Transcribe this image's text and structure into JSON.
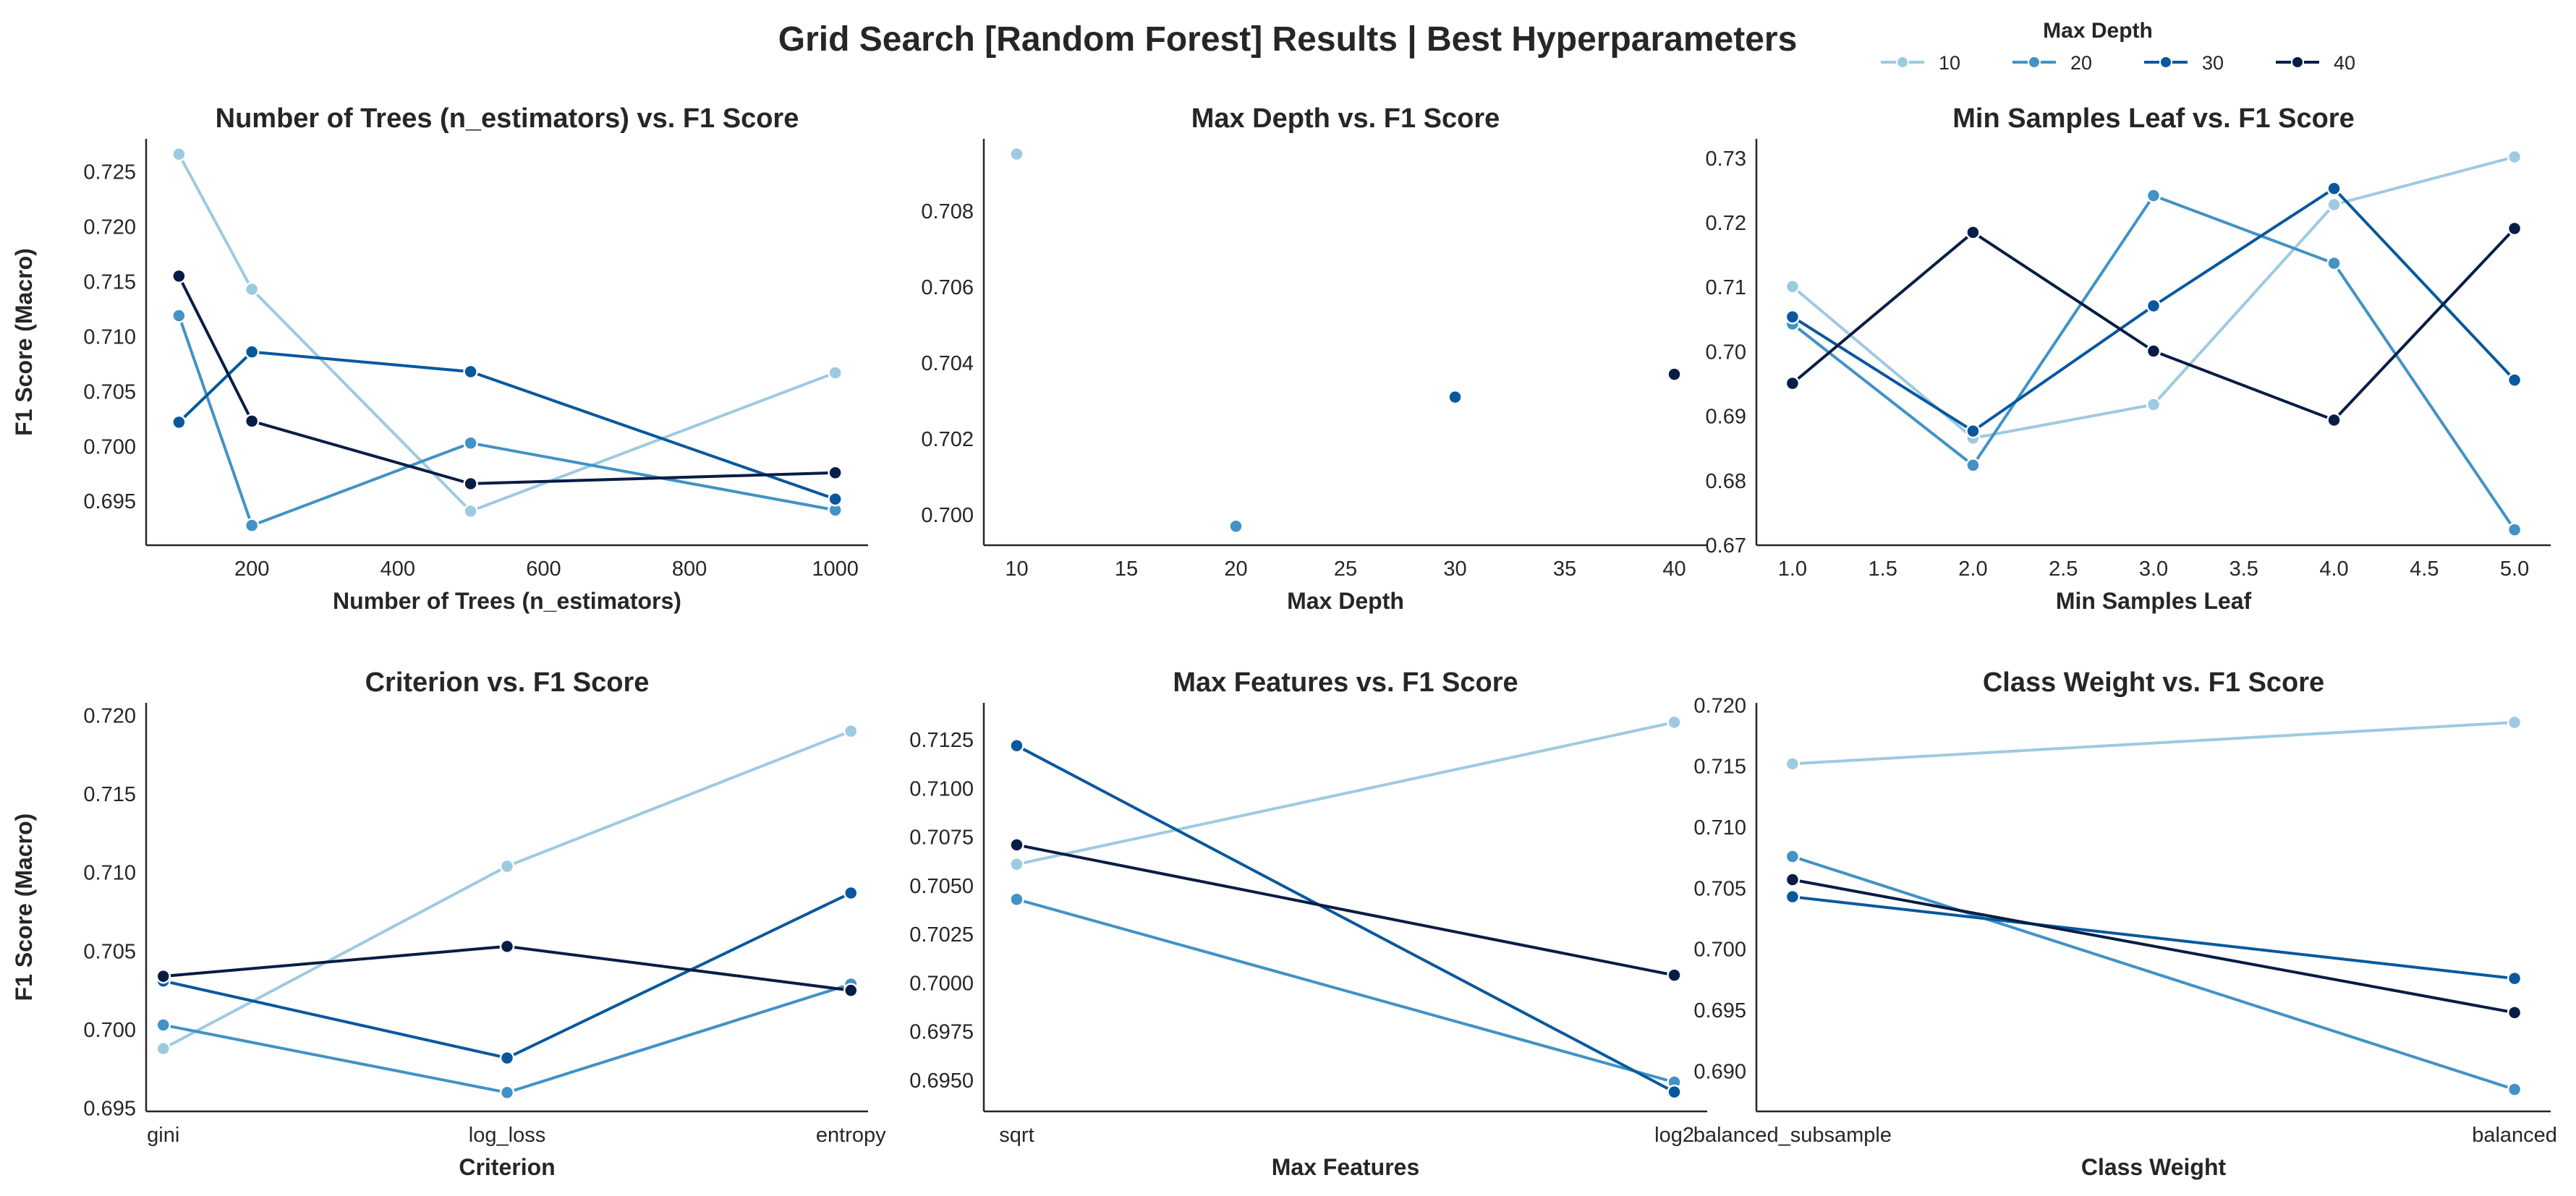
{
  "title": "Grid Search [Random Forest] Results | Best Hyperparameters",
  "legend": {
    "title": "Max Depth",
    "entries": [
      {
        "label": "10",
        "color": "#9ecae1"
      },
      {
        "label": "20",
        "color": "#4292c6"
      },
      {
        "label": "30",
        "color": "#08589e"
      },
      {
        "label": "40",
        "color": "#081d45"
      }
    ]
  },
  "chart_data": [
    {
      "type": "line",
      "title": "Number of Trees (n_estimators) vs. F1 Score",
      "xlabel": "Number of Trees (n_estimators)",
      "ylabel": "F1 Score (Macro)",
      "xscale": "linear",
      "xlim": [
        55,
        1045
      ],
      "ylim": [
        0.691,
        0.728
      ],
      "xticks": [
        200,
        400,
        600,
        800,
        1000
      ],
      "xtick_labels": [
        "200",
        "400",
        "600",
        "800",
        "1000"
      ],
      "yticks": [
        0.695,
        0.7,
        0.705,
        0.71,
        0.715,
        0.72,
        0.725
      ],
      "ytick_labels": [
        "0.695",
        "0.700",
        "0.705",
        "0.710",
        "0.715",
        "0.720",
        "0.725"
      ],
      "series": [
        {
          "name": "10",
          "x": [
            100,
            200,
            500,
            1000
          ],
          "y": [
            0.7266,
            0.7143,
            0.6941,
            0.7067
          ]
        },
        {
          "name": "20",
          "x": [
            100,
            200,
            500,
            1000
          ],
          "y": [
            0.7119,
            0.6928,
            0.7003,
            0.6942
          ]
        },
        {
          "name": "30",
          "x": [
            100,
            200,
            500,
            1000
          ],
          "y": [
            0.7022,
            0.7086,
            0.7068,
            0.6952
          ]
        },
        {
          "name": "40",
          "x": [
            100,
            200,
            500,
            1000
          ],
          "y": [
            0.7155,
            0.7023,
            0.6966,
            0.6976
          ]
        }
      ]
    },
    {
      "type": "scatter",
      "title": "Max Depth vs. F1 Score",
      "xlabel": "Max Depth",
      "ylabel": "",
      "xscale": "linear",
      "xlim": [
        8.5,
        41.5
      ],
      "ylim": [
        0.6992,
        0.7099
      ],
      "xticks": [
        10,
        15,
        20,
        25,
        30,
        35,
        40
      ],
      "xtick_labels": [
        "10",
        "15",
        "20",
        "25",
        "30",
        "35",
        "40"
      ],
      "yticks": [
        0.7,
        0.702,
        0.704,
        0.706,
        0.708
      ],
      "ytick_labels": [
        "0.700",
        "0.702",
        "0.704",
        "0.706",
        "0.708"
      ],
      "series": [
        {
          "name": "10",
          "x": [
            10
          ],
          "y": [
            0.7095
          ]
        },
        {
          "name": "20",
          "x": [
            20
          ],
          "y": [
            0.6997
          ]
        },
        {
          "name": "30",
          "x": [
            30
          ],
          "y": [
            0.7031
          ]
        },
        {
          "name": "40",
          "x": [
            40
          ],
          "y": [
            0.7037
          ]
        }
      ]
    },
    {
      "type": "line",
      "title": "Min Samples Leaf vs. F1 Score",
      "xlabel": "Min Samples Leaf",
      "ylabel": "",
      "xscale": "linear",
      "xlim": [
        0.8,
        5.2
      ],
      "ylim": [
        0.67,
        0.733
      ],
      "xticks": [
        1.0,
        1.5,
        2.0,
        2.5,
        3.0,
        3.5,
        4.0,
        4.5,
        5.0
      ],
      "xtick_labels": [
        "1.0",
        "1.5",
        "2.0",
        "2.5",
        "3.0",
        "3.5",
        "4.0",
        "4.5",
        "5.0"
      ],
      "yticks": [
        0.67,
        0.68,
        0.69,
        0.7,
        0.71,
        0.72,
        0.73
      ],
      "ytick_labels": [
        "0.67",
        "0.68",
        "0.69",
        "0.70",
        "0.71",
        "0.72",
        "0.73"
      ],
      "series": [
        {
          "name": "10",
          "x": [
            1,
            2,
            3,
            4,
            5
          ],
          "y": [
            0.7101,
            0.6866,
            0.6918,
            0.7228,
            0.7302
          ]
        },
        {
          "name": "20",
          "x": [
            1,
            2,
            3,
            4,
            5
          ],
          "y": [
            0.7043,
            0.6824,
            0.7242,
            0.7137,
            0.6724
          ]
        },
        {
          "name": "30",
          "x": [
            1,
            2,
            3,
            4,
            5
          ],
          "y": [
            0.7054,
            0.6877,
            0.7071,
            0.7253,
            0.6956
          ]
        },
        {
          "name": "40",
          "x": [
            1,
            2,
            3,
            4,
            5
          ],
          "y": [
            0.6951,
            0.7185,
            0.7001,
            0.6894,
            0.7191
          ]
        }
      ]
    },
    {
      "type": "line",
      "title": "Criterion vs. F1 Score",
      "xlabel": "Criterion",
      "ylabel": "F1 Score (Macro)",
      "xscale": "category",
      "xlim": [
        -0.05,
        2.05
      ],
      "ylim": [
        0.6948,
        0.7208
      ],
      "xticks": [
        0,
        1,
        2
      ],
      "xtick_labels": [
        "gini",
        "log_loss",
        "entropy"
      ],
      "yticks": [
        0.695,
        0.7,
        0.705,
        0.71,
        0.715,
        0.72
      ],
      "ytick_labels": [
        "0.695",
        "0.700",
        "0.705",
        "0.710",
        "0.715",
        "0.720"
      ],
      "series": [
        {
          "name": "10",
          "x": [
            0,
            1,
            2
          ],
          "y": [
            0.6988,
            0.7104,
            0.719
          ]
        },
        {
          "name": "20",
          "x": [
            0,
            1,
            2
          ],
          "y": [
            0.7003,
            0.696,
            0.7029
          ]
        },
        {
          "name": "30",
          "x": [
            0,
            1,
            2
          ],
          "y": [
            0.7031,
            0.6982,
            0.7087
          ]
        },
        {
          "name": "40",
          "x": [
            0,
            1,
            2
          ],
          "y": [
            0.7034,
            0.7053,
            0.7025
          ]
        }
      ]
    },
    {
      "type": "line",
      "title": "Max Features vs. F1 Score",
      "xlabel": "Max Features",
      "ylabel": "",
      "xscale": "category",
      "xlim": [
        -0.05,
        1.05
      ],
      "ylim": [
        0.6934,
        0.7144
      ],
      "xticks": [
        0,
        1
      ],
      "xtick_labels": [
        "sqrt",
        "log2"
      ],
      "yticks": [
        0.695,
        0.6975,
        0.7,
        0.7025,
        0.705,
        0.7075,
        0.71,
        0.7125
      ],
      "ytick_labels": [
        "0.6950",
        "0.6975",
        "0.7000",
        "0.7025",
        "0.7050",
        "0.7075",
        "0.7100",
        "0.7125"
      ],
      "series": [
        {
          "name": "10",
          "x": [
            0,
            1
          ],
          "y": [
            0.7061,
            0.7134
          ]
        },
        {
          "name": "20",
          "x": [
            0,
            1
          ],
          "y": [
            0.7043,
            0.6949
          ]
        },
        {
          "name": "30",
          "x": [
            0,
            1
          ],
          "y": [
            0.7122,
            0.6944
          ]
        },
        {
          "name": "40",
          "x": [
            0,
            1
          ],
          "y": [
            0.7071,
            0.7004
          ]
        }
      ]
    },
    {
      "type": "line",
      "title": "Class Weight vs. F1 Score",
      "xlabel": "Class Weight",
      "ylabel": "",
      "xscale": "category",
      "xlim": [
        -0.05,
        1.05
      ],
      "ylim": [
        0.6867,
        0.7202
      ],
      "xticks": [
        0,
        1
      ],
      "xtick_labels": [
        "balanced_subsample",
        "balanced"
      ],
      "yticks": [
        0.69,
        0.695,
        0.7,
        0.705,
        0.71,
        0.715,
        0.72
      ],
      "ytick_labels": [
        "0.690",
        "0.695",
        "0.700",
        "0.705",
        "0.710",
        "0.715",
        "0.720"
      ],
      "series": [
        {
          "name": "10",
          "x": [
            0,
            1
          ],
          "y": [
            0.7152,
            0.7186
          ]
        },
        {
          "name": "20",
          "x": [
            0,
            1
          ],
          "y": [
            0.7076,
            0.6885
          ]
        },
        {
          "name": "30",
          "x": [
            0,
            1
          ],
          "y": [
            0.7043,
            0.6976
          ]
        },
        {
          "name": "40",
          "x": [
            0,
            1
          ],
          "y": [
            0.7057,
            0.6948
          ]
        }
      ]
    }
  ]
}
